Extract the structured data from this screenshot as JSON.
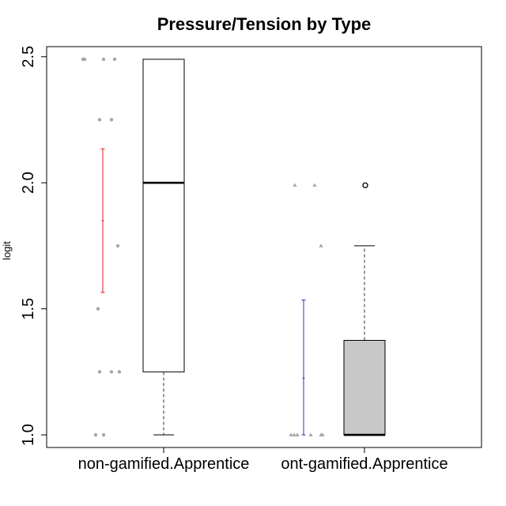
{
  "chart_data": {
    "type": "box",
    "title": "Pressure/Tension by Type",
    "xlabel": "",
    "ylabel": "logit",
    "ylim": [
      0.95,
      2.54
    ],
    "y_ticks": [
      1.0,
      1.5,
      2.0,
      2.5
    ],
    "y_tick_labels": [
      "1.0",
      "1.5",
      "2.0",
      "2.5"
    ],
    "grid": false,
    "legend": "none",
    "categories": [
      "non-gamified.Apprentice",
      "ont-gamified.Apprentice"
    ],
    "boxes": [
      {
        "category": "non-gamified.Apprentice",
        "fill": "#ffffff",
        "whisker_low": 1.0,
        "q1": 1.25,
        "median": 2.0,
        "q3": 2.49,
        "whisker_high": 2.49,
        "outliers": []
      },
      {
        "category": "ont-gamified.Apprentice",
        "fill": "#c8c8c8",
        "whisker_low": 1.0,
        "q1": 1.0,
        "median": 1.0,
        "q3": 1.375,
        "whisker_high": 1.75,
        "outliers": [
          1.99
        ]
      }
    ],
    "mean_ci": [
      {
        "category": "non-gamified.Apprentice",
        "color": "#e41a1c",
        "mean": 1.85,
        "low": 1.565,
        "high": 2.135
      },
      {
        "category": "ont-gamified.Apprentice",
        "color": "#3b2bb0",
        "mean": 1.225,
        "low": 1.0,
        "high": 1.535
      }
    ],
    "jitter_points": [
      {
        "category": "non-gamified.Apprentice",
        "marker": "circle",
        "color": "#a6a6a6",
        "points": [
          {
            "x": 1.0,
            "y": 2.49
          },
          {
            "x": 1.0,
            "y": 2.49
          },
          {
            "x": 1.0,
            "y": 2.49
          },
          {
            "x": 1.0,
            "y": 2.49
          },
          {
            "x": 1.0,
            "y": 2.25
          },
          {
            "x": 1.0,
            "y": 2.25
          },
          {
            "x": 1.0,
            "y": 1.75
          },
          {
            "x": 1.0,
            "y": 1.5
          },
          {
            "x": 1.0,
            "y": 1.25
          },
          {
            "x": 1.0,
            "y": 1.25
          },
          {
            "x": 1.0,
            "y": 1.25
          },
          {
            "x": 1.0,
            "y": 1.0
          },
          {
            "x": 1.0,
            "y": 1.0
          }
        ]
      },
      {
        "category": "ont-gamified.Apprentice",
        "marker": "triangle",
        "color": "#a6a6a6",
        "points": [
          {
            "x": 2.0,
            "y": 1.99
          },
          {
            "x": 2.0,
            "y": 1.99
          },
          {
            "x": 2.0,
            "y": 1.75
          },
          {
            "x": 2.0,
            "y": 1.0
          },
          {
            "x": 2.0,
            "y": 1.0
          },
          {
            "x": 2.0,
            "y": 1.0
          },
          {
            "x": 2.0,
            "y": 1.0
          },
          {
            "x": 2.0,
            "y": 1.0
          },
          {
            "x": 2.0,
            "y": 1.0
          }
        ]
      }
    ]
  }
}
